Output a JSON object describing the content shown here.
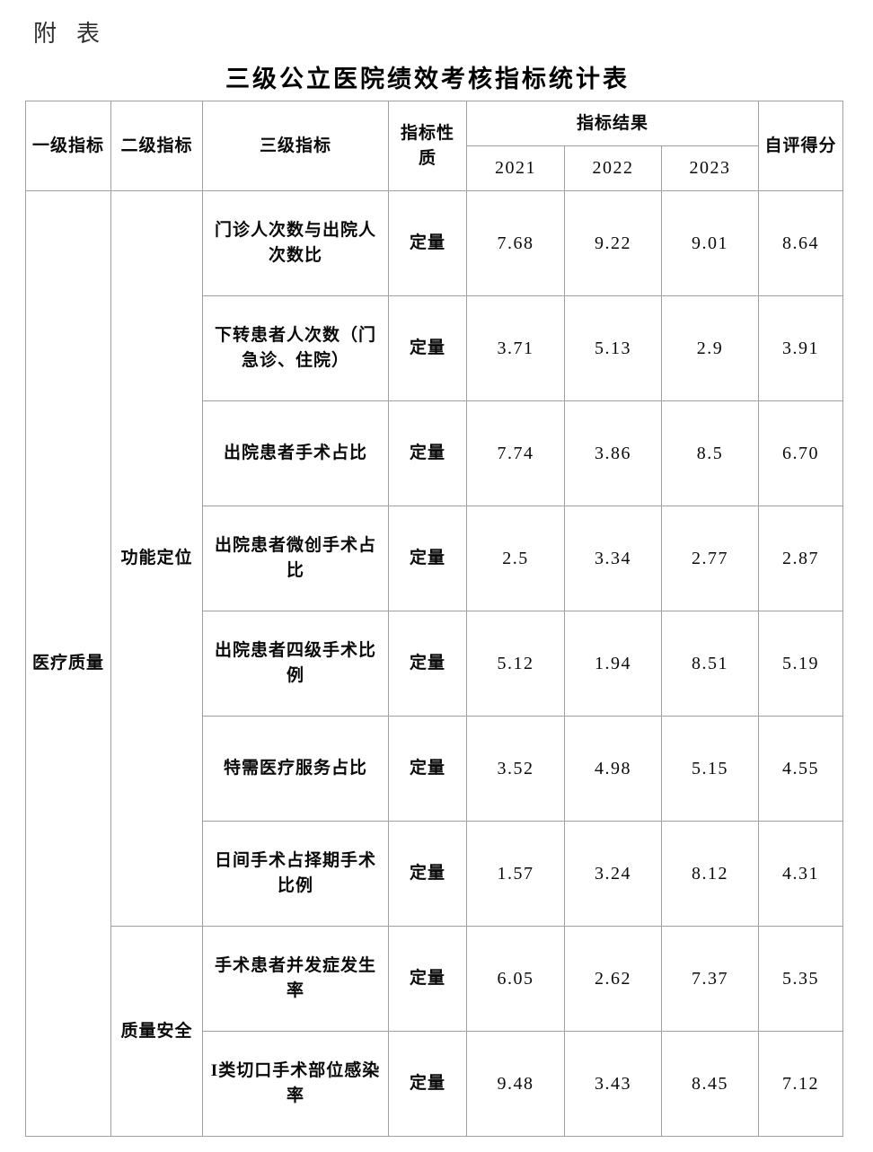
{
  "page": {
    "annex_label": "附表",
    "title": "三级公立医院绩效考核指标统计表"
  },
  "table": {
    "headers": {
      "col1": "一级指标",
      "col2": "二级指标",
      "col3": "三级指标",
      "col4": "指标性质",
      "result_group": "指标结果",
      "years": [
        "2021",
        "2022",
        "2023"
      ],
      "score": "自评得分"
    },
    "level1_groups": [
      {
        "label": "医疗质量",
        "rowspan": 9
      }
    ],
    "level2_groups": [
      {
        "label": "功能定位",
        "rowspan": 7
      },
      {
        "label": "质量安全",
        "rowspan": 2
      }
    ],
    "rows": [
      {
        "indicator": "门诊人次数与出院人次数比",
        "nature": "定量",
        "values": [
          "7.68",
          "9.22",
          "9.01"
        ],
        "score": "8.64"
      },
      {
        "indicator": "下转患者人次数（门急诊、住院）",
        "nature": "定量",
        "values": [
          "3.71",
          "5.13",
          "2.9"
        ],
        "score": "3.91"
      },
      {
        "indicator": "出院患者手术占比",
        "nature": "定量",
        "values": [
          "7.74",
          "3.86",
          "8.5"
        ],
        "score": "6.70"
      },
      {
        "indicator": "出院患者微创手术占比",
        "nature": "定量",
        "values": [
          "2.5",
          "3.34",
          "2.77"
        ],
        "score": "2.87"
      },
      {
        "indicator": "出院患者四级手术比例",
        "nature": "定量",
        "values": [
          "5.12",
          "1.94",
          "8.51"
        ],
        "score": "5.19"
      },
      {
        "indicator": "特需医疗服务占比",
        "nature": "定量",
        "values": [
          "3.52",
          "4.98",
          "5.15"
        ],
        "score": "4.55"
      },
      {
        "indicator": "日间手术占择期手术比例",
        "nature": "定量",
        "values": [
          "1.57",
          "3.24",
          "8.12"
        ],
        "score": "4.31"
      },
      {
        "indicator": "手术患者并发症发生率",
        "nature": "定量",
        "values": [
          "6.05",
          "2.62",
          "7.37"
        ],
        "score": "5.35"
      },
      {
        "indicator": "I类切口手术部位感染率",
        "nature": "定量",
        "values": [
          "9.48",
          "3.43",
          "8.45"
        ],
        "score": "7.12"
      }
    ]
  }
}
